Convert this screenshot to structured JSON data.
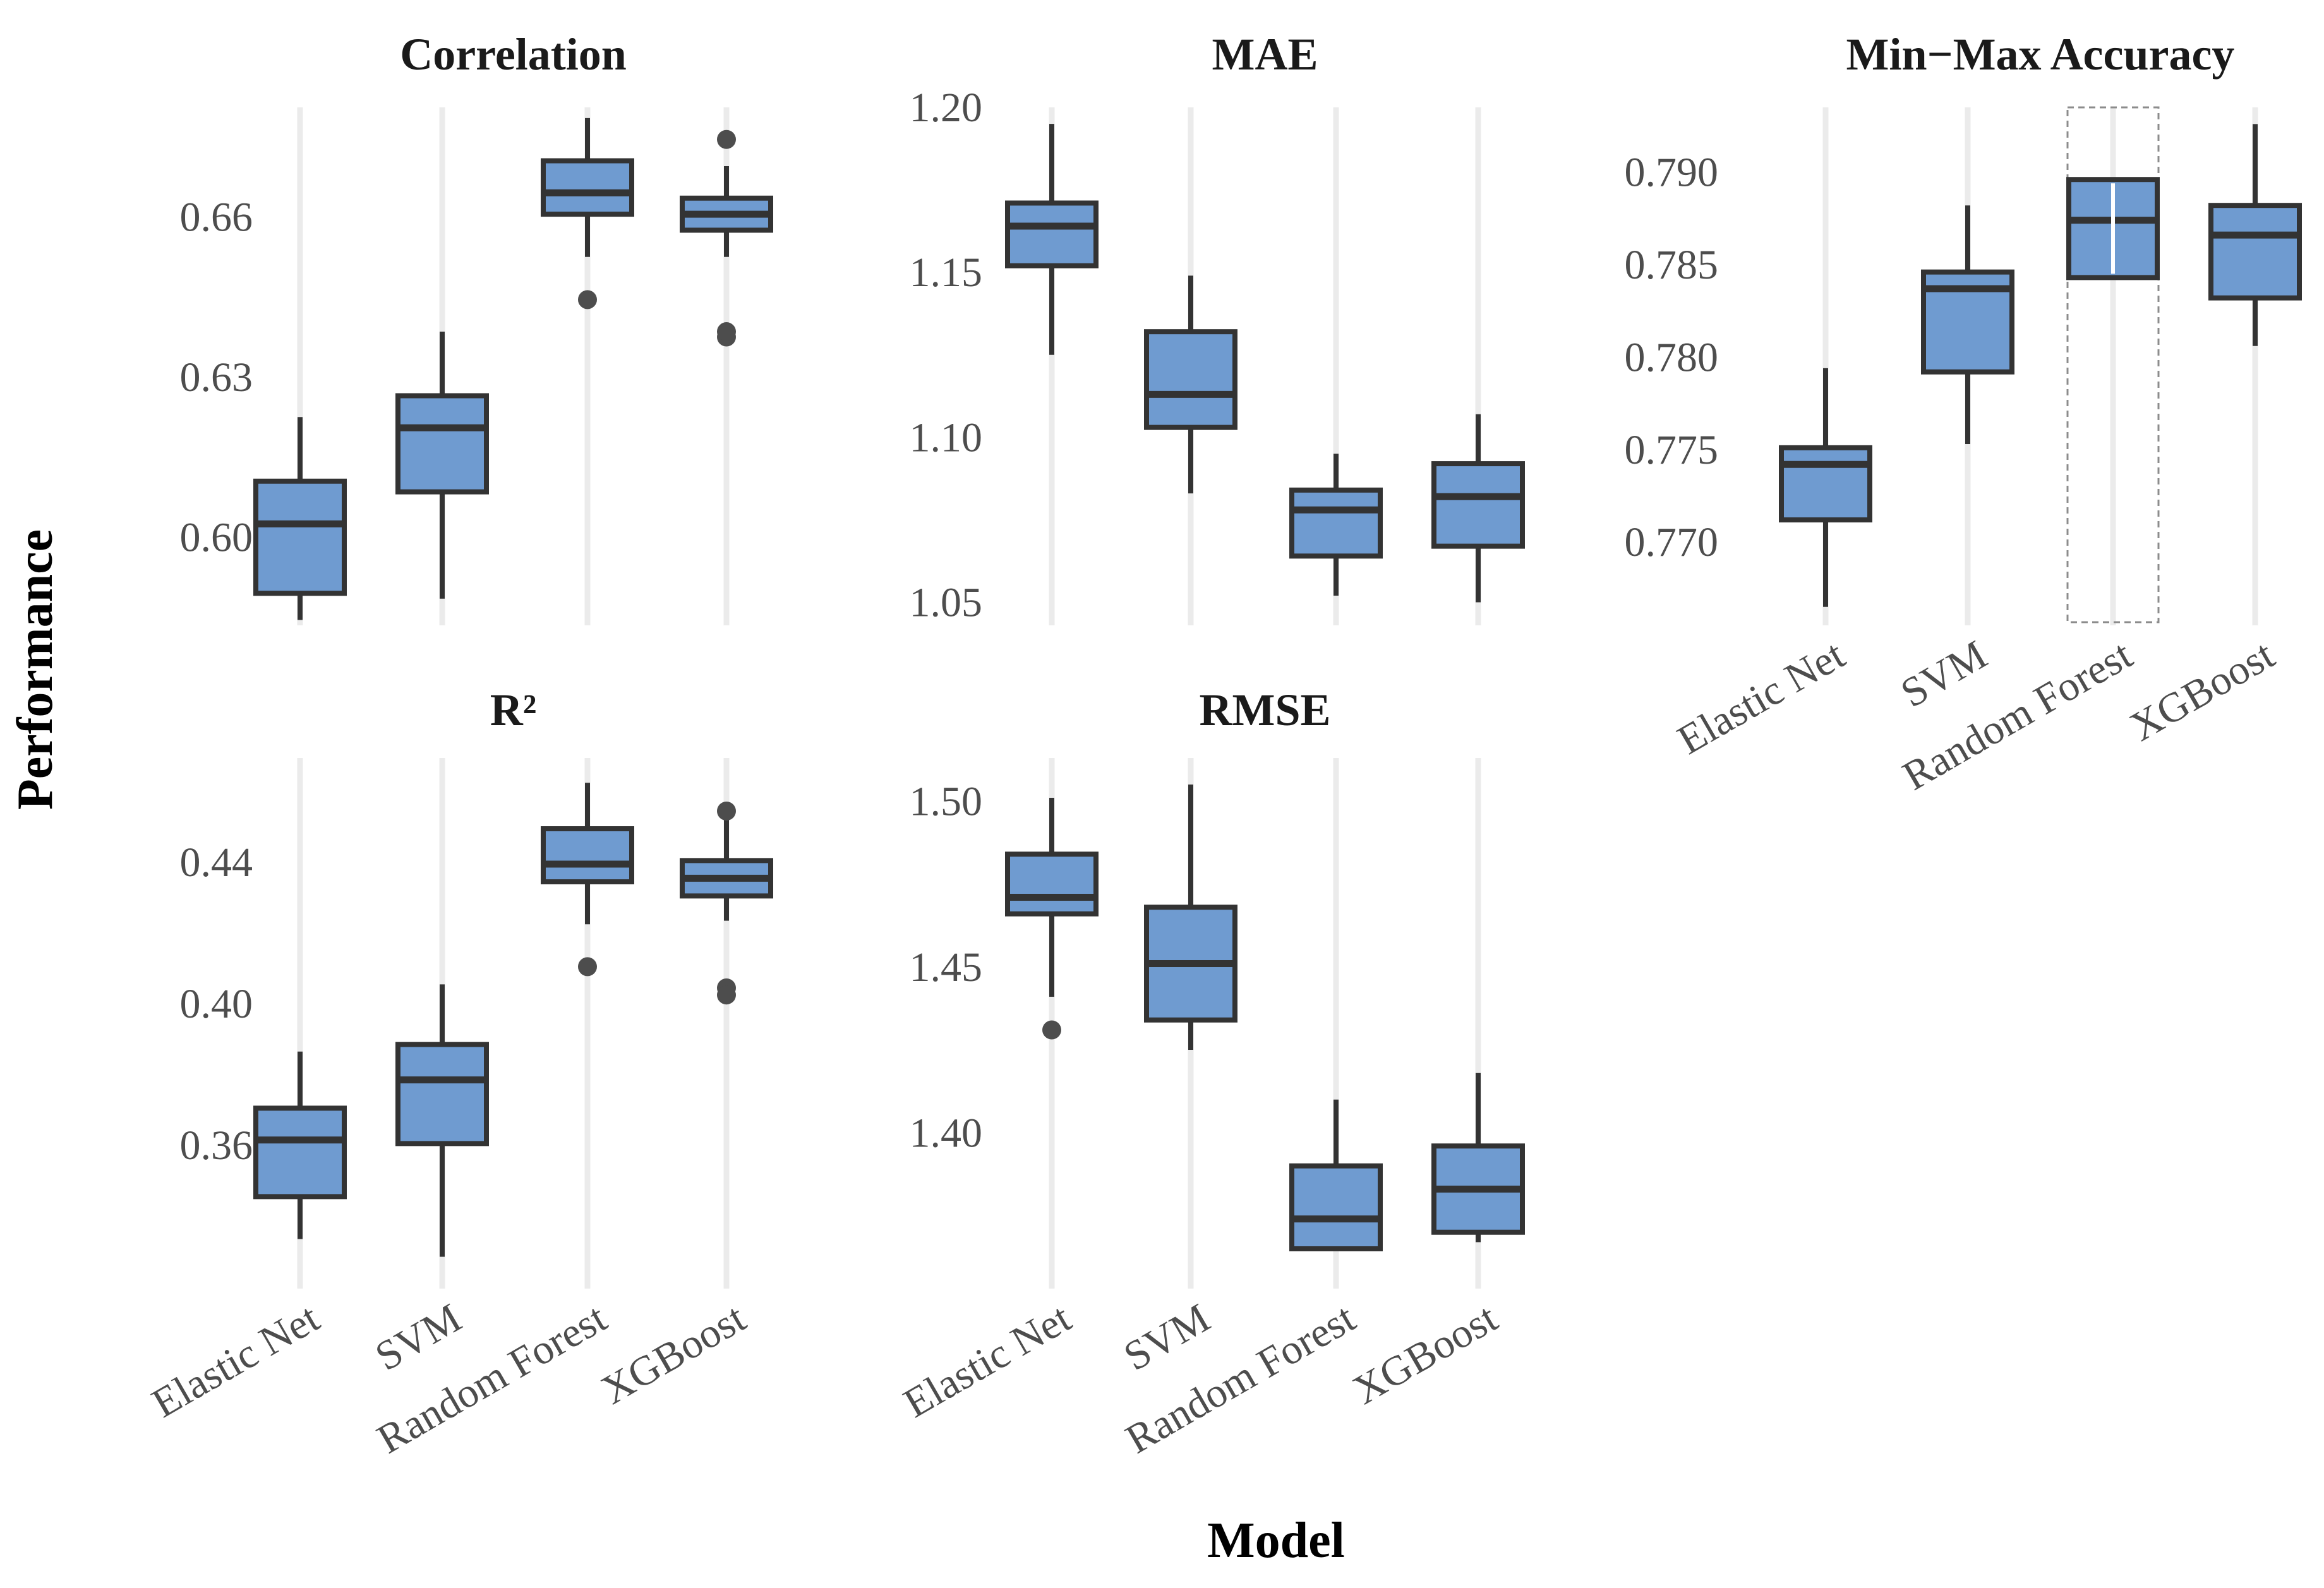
{
  "chart_data": {
    "type": "box",
    "xlabel": "Model",
    "ylabel": "Performance",
    "categories": [
      "Elastic Net",
      "SVM",
      "Random Forest",
      "XGBoost"
    ],
    "colors": {
      "box_fill": "#6f9bd0",
      "box_stroke": "#333333",
      "grid": "#ebebeb",
      "outlier": "#4d4d4d",
      "highlight_border": "#8c8c8c"
    },
    "panels": [
      {
        "title": "Correlation",
        "ylim": [
          0.5835,
          0.6805
        ],
        "yticks": [
          0.6,
          0.63,
          0.66
        ],
        "ytick_labels": [
          "0.60",
          "0.63",
          "0.66"
        ],
        "show_xticks": false,
        "boxes": [
          {
            "category": "Elastic Net",
            "whisker_low": 0.5845,
            "q1": 0.5895,
            "median": 0.6025,
            "q3": 0.6105,
            "whisker_high": 0.6225,
            "outliers": []
          },
          {
            "category": "SVM",
            "whisker_low": 0.5885,
            "q1": 0.6085,
            "median": 0.6205,
            "q3": 0.6265,
            "whisker_high": 0.6385,
            "outliers": []
          },
          {
            "category": "Random Forest",
            "whisker_low": 0.6525,
            "q1": 0.6605,
            "median": 0.6645,
            "q3": 0.6705,
            "whisker_high": 0.6785,
            "outliers": [
              0.6445
            ]
          },
          {
            "category": "XGBoost",
            "whisker_low": 0.6525,
            "q1": 0.6575,
            "median": 0.6605,
            "q3": 0.6635,
            "whisker_high": 0.6695,
            "outliers": [
              0.6745,
              0.6375,
              0.6385
            ]
          }
        ]
      },
      {
        "title": "MAE",
        "ylim": [
          1.043,
          1.2
        ],
        "yticks": [
          1.05,
          1.1,
          1.15,
          1.2
        ],
        "ytick_labels": [
          "1.05",
          "1.10",
          "1.15",
          "1.20"
        ],
        "show_xticks": false,
        "boxes": [
          {
            "category": "Elastic Net",
            "whisker_low": 1.125,
            "q1": 1.152,
            "median": 1.164,
            "q3": 1.171,
            "whisker_high": 1.195,
            "outliers": []
          },
          {
            "category": "SVM",
            "whisker_low": 1.083,
            "q1": 1.103,
            "median": 1.113,
            "q3": 1.132,
            "whisker_high": 1.149,
            "outliers": []
          },
          {
            "category": "Random Forest",
            "whisker_low": 1.052,
            "q1": 1.064,
            "median": 1.078,
            "q3": 1.084,
            "whisker_high": 1.095,
            "outliers": []
          },
          {
            "category": "XGBoost",
            "whisker_low": 1.05,
            "q1": 1.067,
            "median": 1.082,
            "q3": 1.092,
            "whisker_high": 1.107,
            "outliers": []
          }
        ]
      },
      {
        "title": "Min−Max Accuracy",
        "ylim": [
          0.7655,
          0.7935
        ],
        "yticks": [
          0.77,
          0.775,
          0.78,
          0.785,
          0.79
        ],
        "ytick_labels": [
          "0.770",
          "0.775",
          "0.780",
          "0.785",
          "0.790"
        ],
        "show_xticks": true,
        "highlight_category": "Random Forest",
        "boxes": [
          {
            "category": "Elastic Net",
            "whisker_low": 0.7665,
            "q1": 0.7712,
            "median": 0.7742,
            "q3": 0.7751,
            "whisker_high": 0.7794,
            "outliers": []
          },
          {
            "category": "SVM",
            "whisker_low": 0.7753,
            "q1": 0.7792,
            "median": 0.7837,
            "q3": 0.7846,
            "whisker_high": 0.7882,
            "outliers": []
          },
          {
            "category": "Random Forest",
            "whisker_low": 0.7843,
            "q1": 0.7843,
            "median": 0.7874,
            "q3": 0.7896,
            "whisker_high": 0.7896,
            "outliers": []
          },
          {
            "category": "XGBoost",
            "whisker_low": 0.7806,
            "q1": 0.7832,
            "median": 0.7866,
            "q3": 0.7882,
            "whisker_high": 0.7926,
            "outliers": []
          }
        ]
      },
      {
        "title": "R²",
        "ylim": [
          0.3195,
          0.4695
        ],
        "yticks": [
          0.36,
          0.4,
          0.44
        ],
        "ytick_labels": [
          "0.36",
          "0.40",
          "0.44"
        ],
        "show_xticks": true,
        "boxes": [
          {
            "category": "Elastic Net",
            "whisker_low": 0.3335,
            "q1": 0.3455,
            "median": 0.3615,
            "q3": 0.3705,
            "whisker_high": 0.3865,
            "outliers": []
          },
          {
            "category": "SVM",
            "whisker_low": 0.3285,
            "q1": 0.3605,
            "median": 0.3785,
            "q3": 0.3885,
            "whisker_high": 0.4055,
            "outliers": []
          },
          {
            "category": "Random Forest",
            "whisker_low": 0.4225,
            "q1": 0.4345,
            "median": 0.4395,
            "q3": 0.4495,
            "whisker_high": 0.4625,
            "outliers": [
              0.4105
            ]
          },
          {
            "category": "XGBoost",
            "whisker_low": 0.4235,
            "q1": 0.4305,
            "median": 0.4355,
            "q3": 0.4405,
            "whisker_high": 0.4535,
            "outliers": [
              0.4545,
              0.4045,
              0.4025
            ]
          }
        ]
      },
      {
        "title": "RMSE",
        "ylim": [
          1.353,
          1.513
        ],
        "yticks": [
          1.4,
          1.45,
          1.5
        ],
        "ytick_labels": [
          "1.40",
          "1.45",
          "1.50"
        ],
        "show_xticks": true,
        "boxes": [
          {
            "category": "Elastic Net",
            "whisker_low": 1.441,
            "q1": 1.466,
            "median": 1.471,
            "q3": 1.484,
            "whisker_high": 1.501,
            "outliers": [
              1.431
            ]
          },
          {
            "category": "SVM",
            "whisker_low": 1.425,
            "q1": 1.434,
            "median": 1.451,
            "q3": 1.468,
            "whisker_high": 1.505,
            "outliers": []
          },
          {
            "category": "Random Forest",
            "whisker_low": 1.365,
            "q1": 1.365,
            "median": 1.374,
            "q3": 1.39,
            "whisker_high": 1.41,
            "outliers": []
          },
          {
            "category": "XGBoost",
            "whisker_low": 1.367,
            "q1": 1.37,
            "median": 1.383,
            "q3": 1.396,
            "whisker_high": 1.418,
            "outliers": []
          }
        ]
      }
    ]
  }
}
